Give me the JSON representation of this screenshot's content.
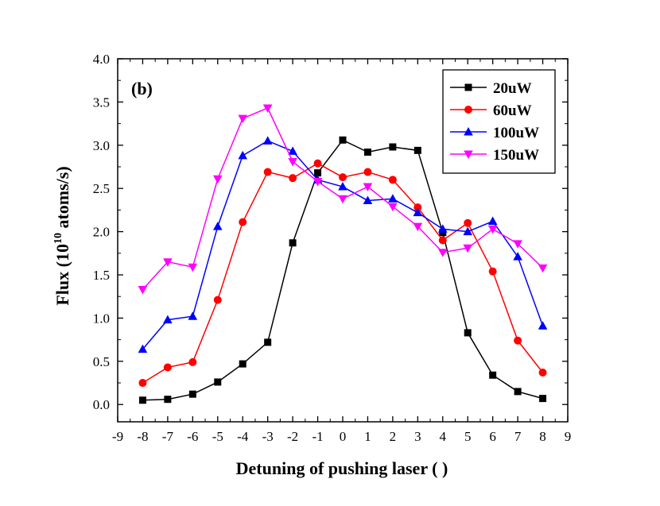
{
  "chart_data": {
    "type": "line",
    "panel_label": "(b)",
    "xlabel": "Detuning of pushing laser (   )",
    "ylabel_prefix": "Flux (10",
    "ylabel_exponent": "10",
    "ylabel_suffix": " atoms/s)",
    "xlim": [
      -9,
      9
    ],
    "ylim": [
      -0.2,
      4.0
    ],
    "xticks": [
      -9,
      -8,
      -7,
      -6,
      -5,
      -4,
      -3,
      -2,
      -1,
      0,
      1,
      2,
      3,
      4,
      5,
      6,
      7,
      8,
      9
    ],
    "yticks": [
      0.0,
      0.5,
      1.0,
      1.5,
      2.0,
      2.5,
      3.0,
      3.5,
      4.0
    ],
    "ytick_labels": [
      "0.0",
      "0.5",
      "1.0",
      "1.5",
      "2.0",
      "2.5",
      "3.0",
      "3.5",
      "4.0"
    ],
    "legend_position": "top-right",
    "grid": false,
    "x": [
      -8,
      -7,
      -6,
      -5,
      -4,
      -3,
      -2,
      -1,
      0,
      1,
      2,
      3,
      4,
      5,
      6,
      7,
      8
    ],
    "series": [
      {
        "name": "20uW",
        "color": "#000000",
        "marker": "square",
        "values": [
          0.05,
          0.06,
          0.12,
          0.26,
          0.47,
          0.72,
          1.87,
          2.68,
          3.06,
          2.92,
          2.98,
          2.94,
          1.99,
          0.83,
          0.34,
          0.15,
          0.07
        ]
      },
      {
        "name": "60uW",
        "color": "#ff0000",
        "marker": "circle",
        "values": [
          0.25,
          0.43,
          0.49,
          1.21,
          2.11,
          2.69,
          2.62,
          2.79,
          2.63,
          2.69,
          2.6,
          2.28,
          1.9,
          2.1,
          1.54,
          0.74,
          0.37
        ]
      },
      {
        "name": "100uW",
        "color": "#0000ff",
        "marker": "triangle-up",
        "values": [
          0.64,
          0.98,
          1.02,
          2.06,
          2.88,
          3.05,
          2.93,
          2.6,
          2.52,
          2.36,
          2.38,
          2.22,
          2.03,
          2.0,
          2.12,
          1.71,
          0.91
        ]
      },
      {
        "name": "150uW",
        "color": "#ff00ff",
        "marker": "triangle-down",
        "values": [
          1.33,
          1.65,
          1.59,
          2.61,
          3.31,
          3.43,
          2.81,
          2.58,
          2.38,
          2.52,
          2.29,
          2.06,
          1.76,
          1.81,
          2.03,
          1.86,
          1.58
        ]
      }
    ]
  }
}
